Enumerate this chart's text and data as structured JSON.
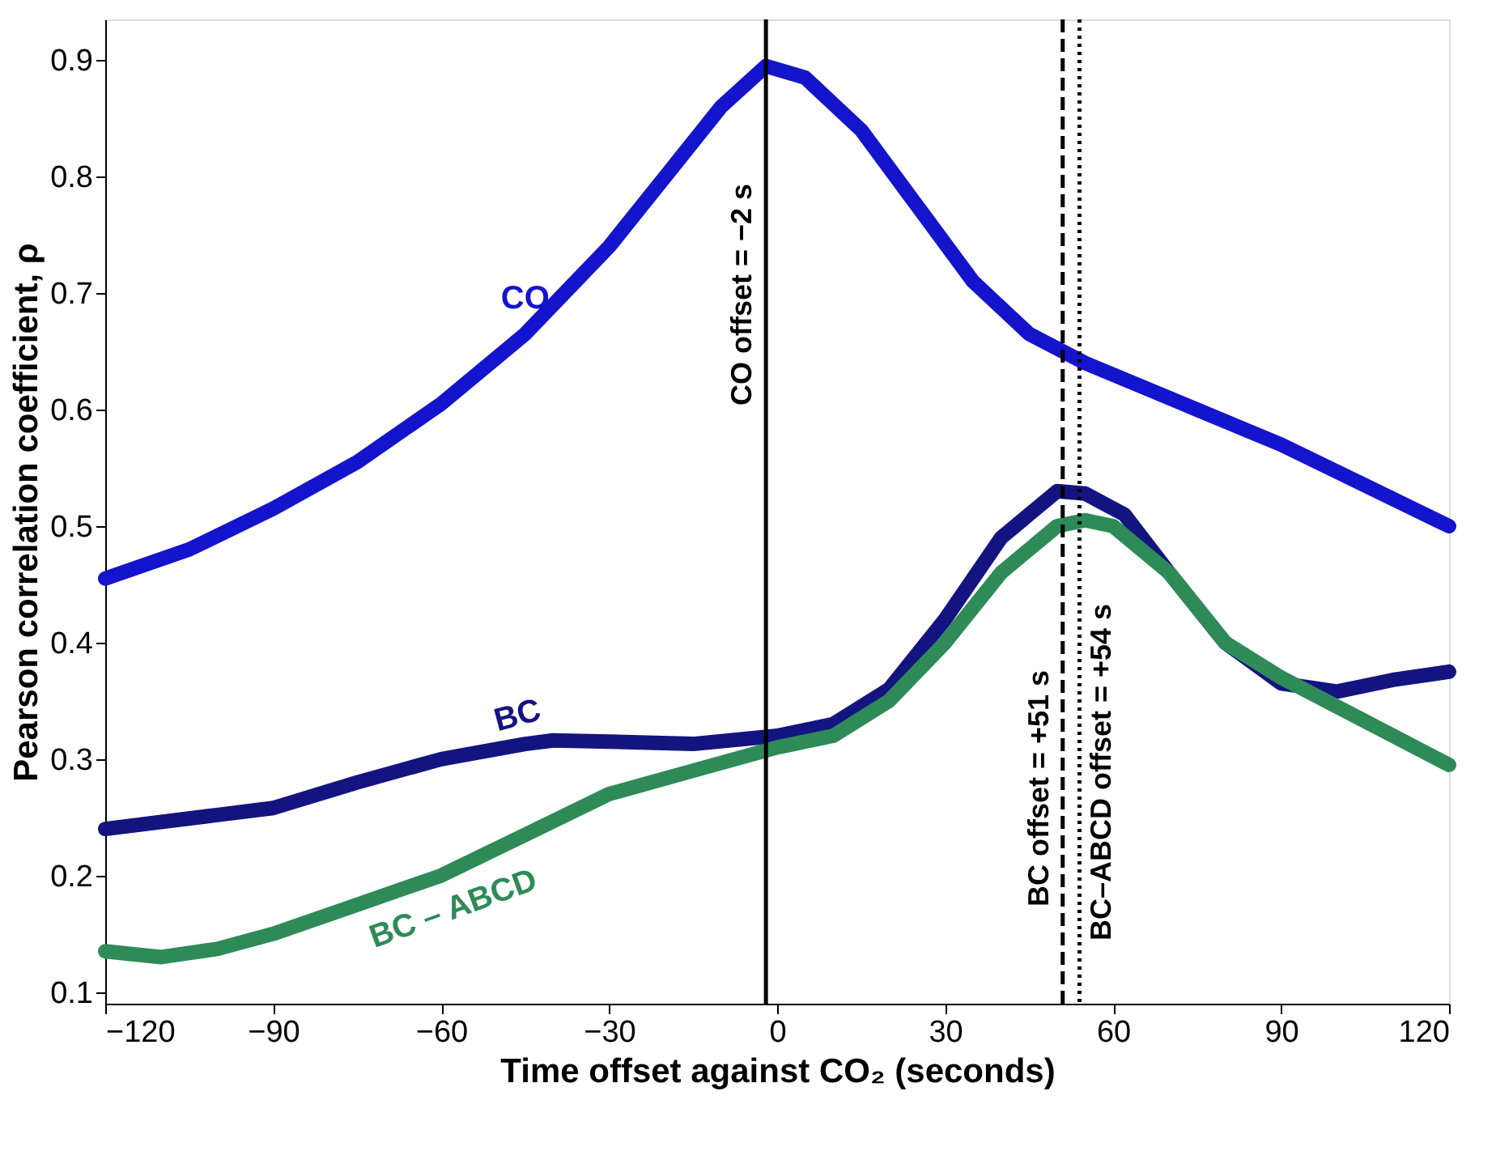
{
  "chart_data": {
    "type": "line",
    "xlabel": "Time offset against CO₂ (seconds)",
    "ylabel": "Pearson correlation coefficient, ρ",
    "xlim": [
      -120,
      120
    ],
    "xticks": [
      -120,
      -90,
      -60,
      -30,
      0,
      30,
      60,
      90,
      120
    ],
    "ylim": [
      0.09,
      0.935
    ],
    "yticks": [
      0.1,
      0.2,
      0.3,
      0.4,
      0.5,
      0.6,
      0.7,
      0.8,
      0.9
    ],
    "grid": false,
    "line_style": "solid",
    "series": [
      {
        "name": "CO",
        "color": "#1414cc",
        "x": [
          -120,
          -105,
          -90,
          -75,
          -60,
          -45,
          -30,
          -20,
          -10,
          -2,
          5,
          15,
          25,
          35,
          45,
          55,
          65,
          75,
          90,
          105,
          120
        ],
        "values": [
          0.455,
          0.48,
          0.515,
          0.555,
          0.605,
          0.665,
          0.74,
          0.8,
          0.86,
          0.895,
          0.885,
          0.84,
          0.775,
          0.71,
          0.665,
          0.64,
          0.62,
          0.6,
          0.57,
          0.535,
          0.5
        ]
      },
      {
        "name": "BC",
        "color": "#141480",
        "x": [
          -120,
          -100,
          -90,
          -75,
          -60,
          -45,
          -40,
          -30,
          -15,
          0,
          10,
          20,
          30,
          40,
          50,
          55,
          62,
          70,
          80,
          90,
          100,
          110,
          120
        ],
        "values": [
          0.24,
          0.252,
          0.258,
          0.28,
          0.3,
          0.313,
          0.316,
          0.315,
          0.313,
          0.32,
          0.33,
          0.36,
          0.42,
          0.49,
          0.53,
          0.528,
          0.51,
          0.46,
          0.4,
          0.365,
          0.358,
          0.368,
          0.375
        ]
      },
      {
        "name": "BC – ABCD",
        "color": "#2e8b57",
        "x": [
          -120,
          -110,
          -100,
          -90,
          -75,
          -60,
          -45,
          -30,
          -15,
          0,
          10,
          20,
          30,
          40,
          50,
          55,
          60,
          70,
          80,
          90,
          100,
          110,
          120
        ],
        "values": [
          0.135,
          0.13,
          0.137,
          0.15,
          0.175,
          0.2,
          0.235,
          0.27,
          0.29,
          0.31,
          0.32,
          0.35,
          0.4,
          0.46,
          0.5,
          0.505,
          0.5,
          0.46,
          0.4,
          0.37,
          0.345,
          0.32,
          0.295
        ]
      }
    ],
    "ref_lines": [
      {
        "axis": "x",
        "value": -2,
        "label": "CO offset = −2 s",
        "color": "#000000",
        "line_style": "solid"
      },
      {
        "axis": "x",
        "value": 51,
        "label": "BC offset = +51 s",
        "color": "#000000",
        "line_style": "dashed"
      },
      {
        "axis": "x",
        "value": 54,
        "label": "BC–ABCD offset = +54 s",
        "color": "#000000",
        "line_style": "dotted"
      }
    ]
  }
}
